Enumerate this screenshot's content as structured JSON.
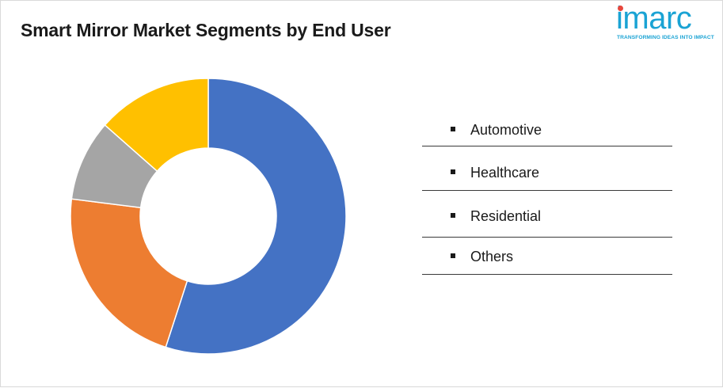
{
  "title": "Smart Mirror Market Segments by End User",
  "logo": {
    "word": "imarc",
    "tagline": "TRANSFORMING IDEAS INTO IMPACT"
  },
  "chart_data": {
    "type": "pie",
    "variant": "donut",
    "title": "Smart Mirror Market Segments by End User",
    "categories": [
      "Automotive",
      "Healthcare",
      "Residential",
      "Others"
    ],
    "values": [
      55,
      22,
      9.5,
      13.5
    ],
    "colors": [
      "#4472c4",
      "#ed7d31",
      "#a5a5a5",
      "#ffc000"
    ],
    "legend_position": "right"
  },
  "legend": {
    "items": [
      {
        "label": "Automotive"
      },
      {
        "label": "Healthcare"
      },
      {
        "label": "Residential"
      },
      {
        "label": "Others"
      }
    ]
  }
}
